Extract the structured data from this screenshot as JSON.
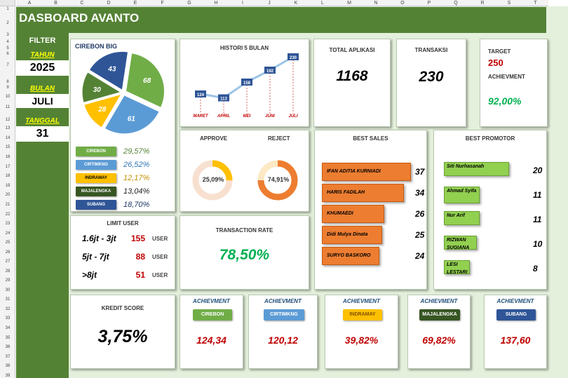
{
  "sheet": {
    "columns": [
      "A",
      "B",
      "C",
      "D",
      "E",
      "F",
      "G",
      "H",
      "I",
      "J",
      "K",
      "L",
      "M",
      "N",
      "O",
      "P",
      "Q",
      "R",
      "S",
      "T"
    ],
    "rows": [
      "1",
      "2",
      "3",
      "4",
      "5",
      "6",
      "7",
      "8",
      "9",
      "10",
      "11",
      "12",
      "13",
      "14",
      "15",
      "16",
      "17",
      "18",
      "19",
      "20",
      "21",
      "22",
      "23",
      "24",
      "25",
      "26",
      "27",
      "28",
      "29",
      "30",
      "31",
      "32",
      "33",
      "34",
      "35",
      "36",
      "37",
      "38",
      "39",
      "40",
      "41",
      "42",
      "43"
    ]
  },
  "title": "DASBOARD AVANTO",
  "filter": {
    "label": "FILTER",
    "tahun_label": "TAHUN",
    "tahun": "2025",
    "bulan_label": "BULAN",
    "bulan": "JULI",
    "tanggal_label": "TANGGAL",
    "tanggal": "31"
  },
  "branch_chart": {
    "title": "CIREBON BIG",
    "slice_labels": [
      "68",
      "61",
      "28",
      "30",
      "43"
    ],
    "legend": [
      {
        "name": "CIREBON",
        "pct": "29,57%",
        "color": "#70ad47",
        "pct_color": "#548235"
      },
      {
        "name": "CIRTIMKNG",
        "pct": "26,52%",
        "color": "#5b9bd5",
        "pct_color": "#2e75b6"
      },
      {
        "name": "INDRAMAY",
        "pct": "12,17%",
        "color": "#ffc000",
        "pct_color": "#bf9000"
      },
      {
        "name": "MAJALENGKA",
        "pct": "13,04%",
        "color": "#375623",
        "pct_color": "#222222"
      },
      {
        "name": "SUBANG",
        "pct": "18,70%",
        "color": "#2f5597",
        "pct_color": "#1f3864"
      }
    ]
  },
  "chart_data": {
    "type": "line",
    "title": "HISTORI 5 BULAN",
    "categories": [
      "MARET",
      "APRIL",
      "MEI",
      "JUNI",
      "JULI"
    ],
    "values": [
      124,
      113,
      158,
      192,
      230
    ]
  },
  "total_aplikasi": {
    "label": "TOTAL APLIKASI",
    "value": "1168"
  },
  "transaksi": {
    "label": "TRANSAKSI",
    "value": "230"
  },
  "target": {
    "label": "TARGET",
    "value": "250",
    "ach_label": "ACHIEVMENT",
    "ach_value": "92,00%"
  },
  "approve": {
    "label": "APPROVE",
    "value": "25,09%",
    "fraction": 0.2509
  },
  "reject": {
    "label": "REJECT",
    "value": "74,91%",
    "fraction": 0.7491
  },
  "best_sales": {
    "title": "BEST SALES",
    "items": [
      {
        "name": "IFAN ADITIA KURNIADI",
        "value": 37
      },
      {
        "name": "HARIS FADILAH",
        "value": 34
      },
      {
        "name": "KHUMAEDI",
        "value": 26
      },
      {
        "name": "Didi Mulya Dinata",
        "value": 25
      },
      {
        "name": "SURYO BASKORO",
        "value": 24
      }
    ]
  },
  "best_promotor": {
    "title": "BEST PROMOTOR",
    "items": [
      {
        "name": "Siti Nurhasanah",
        "value": 20
      },
      {
        "name": "Ahmad Syifa",
        "value": 11
      },
      {
        "name": "Nur Arif",
        "value": 11
      },
      {
        "name": "RIZWAN SUGIANA",
        "value": 10
      },
      {
        "name": "LESI LESTARI",
        "value": 8
      }
    ]
  },
  "limit_user": {
    "title": "LIMIT USER",
    "rows": [
      {
        "range": "1.6jt - 3jt",
        "count": "155",
        "unit": "USER"
      },
      {
        "range": "5jt - 7jt",
        "count": "88",
        "unit": "USER"
      },
      {
        "range": ">8jt",
        "count": "51",
        "unit": "USER"
      }
    ]
  },
  "transaction_rate": {
    "label": "TRANSACTION RATE",
    "value": "78,50%"
  },
  "kredit_score": {
    "label": "KREDIT SCORE",
    "value": "3,75%"
  },
  "achievements": [
    {
      "label": "ACHIEVMENT",
      "branch": "CIREBON",
      "value": "124,34",
      "btn_color": "#70ad47",
      "text_color": "#ffffff"
    },
    {
      "label": "ACHIEVMENT",
      "branch": "CIRTIMKNG",
      "value": "120,12",
      "btn_color": "#5b9bd5",
      "text_color": "#ffffff"
    },
    {
      "label": "ACHIEVMENT",
      "branch": "INDRAMAY",
      "value": "39,82%",
      "btn_color": "#ffc000",
      "text_color": "#7f4f00"
    },
    {
      "label": "ACHIEVMENT",
      "branch": "MAJALENGKA",
      "value": "69,82%",
      "btn_color": "#375623",
      "text_color": "#ffffff"
    },
    {
      "label": "ACHIEVMENT",
      "branch": "SUBANG",
      "value": "137,60",
      "btn_color": "#2f5597",
      "text_color": "#ffffff"
    }
  ]
}
